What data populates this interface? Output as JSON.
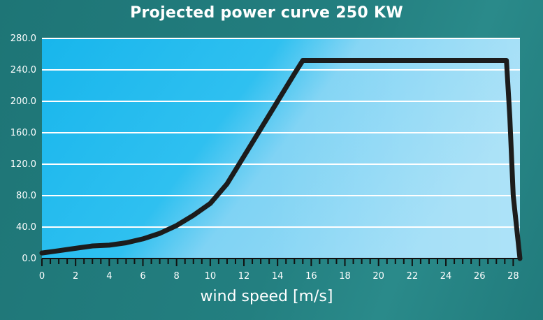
{
  "chart_data": {
    "type": "line",
    "title": "Projected power curve 250 KW",
    "xlabel": "wind speed [m/s]",
    "ylabel": "",
    "xlim": [
      0,
      28.4
    ],
    "ylim": [
      0,
      280
    ],
    "xticks": [
      0,
      2,
      4,
      6,
      8,
      10,
      12,
      14,
      16,
      18,
      20,
      22,
      24,
      26,
      28
    ],
    "yticks": [
      "0.0",
      "40.0",
      "80.0",
      "120.0",
      "160.0",
      "200.0",
      "240.0",
      "280.0"
    ],
    "grid": true,
    "legend": "none",
    "series": [
      {
        "x": [
          0,
          1,
          2,
          3,
          4,
          5,
          6,
          7,
          8,
          9,
          10,
          11,
          12,
          13,
          14,
          15,
          15.5,
          16,
          18,
          20,
          22,
          24,
          26,
          27.6,
          27.8,
          28,
          28.4
        ],
        "y": [
          7,
          10,
          13,
          16,
          17,
          20,
          25,
          32,
          42,
          55,
          70,
          95,
          130,
          165,
          200,
          235,
          252,
          252,
          252,
          252,
          252,
          252,
          252,
          252,
          180,
          80,
          0
        ]
      }
    ]
  },
  "colors": {
    "background": "#1e7576",
    "plot_light": "#8ad8f5",
    "plot_dark": "#00a8e6",
    "grid": "#ffffff",
    "line": "#1c1c1c"
  }
}
